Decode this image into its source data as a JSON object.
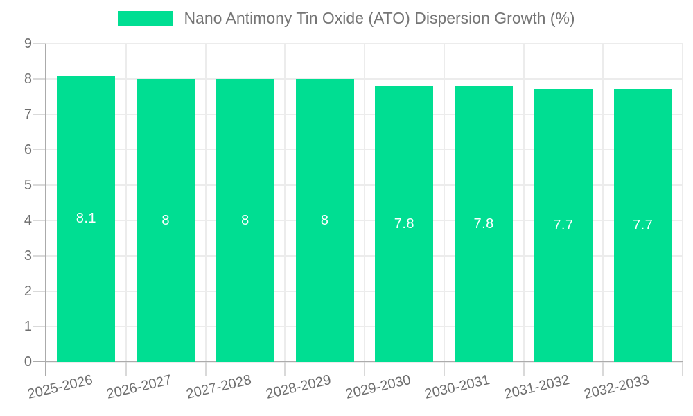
{
  "chart_data": {
    "type": "bar",
    "title": "Nano Antimony Tin Oxide (ATO) Dispersion Growth (%)",
    "categories": [
      "2025-2026",
      "2026-2027",
      "2027-2028",
      "2028-2029",
      "2029-2030",
      "2030-2031",
      "2031-2032",
      "2032-2033"
    ],
    "values": [
      8.1,
      8,
      8,
      8,
      7.8,
      7.8,
      7.7,
      7.7
    ],
    "value_labels": [
      "8.1",
      "8",
      "8",
      "8",
      "7.8",
      "7.8",
      "7.7",
      "7.7"
    ],
    "xlabel": "",
    "ylabel": "",
    "ylim": [
      0,
      9
    ],
    "y_ticks": [
      0,
      1,
      2,
      3,
      4,
      5,
      6,
      7,
      8,
      9
    ],
    "grid": "on",
    "legend_position": "top-center",
    "x_label_rotation_deg": -13,
    "colors": {
      "bar": "#00DE92",
      "value_label": "#ffffff",
      "axis_text": "#6E6E6E",
      "legend_text": "#757575",
      "gridline": "#ECECEC",
      "tick": "#D9D9D9",
      "axis_line": "#ABABAB",
      "background": "#ffffff"
    }
  }
}
